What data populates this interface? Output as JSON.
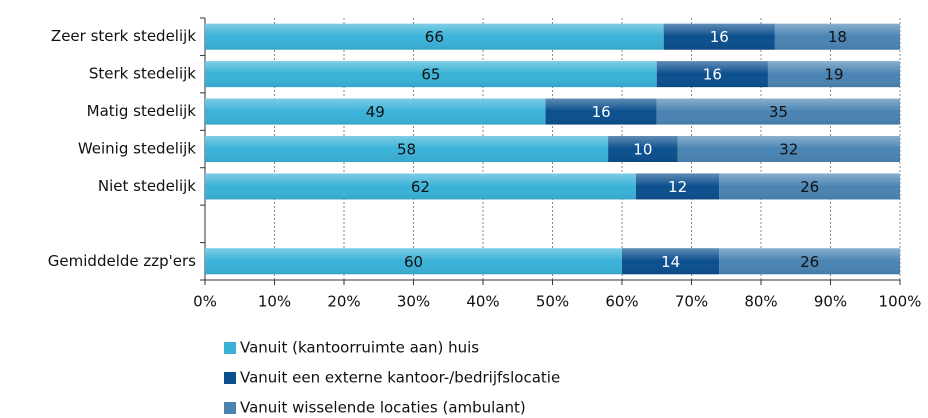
{
  "chart_data": {
    "type": "stacked-bar-horizontal",
    "categories": [
      "Zeer sterk stedelijk",
      "Sterk stedelijk",
      "Matig stedelijk",
      "Weinig stedelijk",
      "Niet stedelijk",
      null,
      "Gemiddelde zzp'ers"
    ],
    "series": [
      {
        "name": "Vanuit (kantoorruimte aan) huis",
        "color": "#3ab2d8",
        "label_color": "#111111",
        "values": [
          66,
          65,
          49,
          58,
          62,
          null,
          60
        ]
      },
      {
        "name": "Vanuit een externe kantoor-/bedrijfslocatie",
        "color": "#0b4f8e",
        "label_color": "#ffffff",
        "values": [
          16,
          16,
          16,
          10,
          12,
          null,
          14
        ]
      },
      {
        "name": "Vanuit wisselende locaties (ambulant)",
        "color": "#4a84b3",
        "label_color": "#111111",
        "values": [
          18,
          19,
          35,
          32,
          26,
          null,
          26
        ]
      }
    ],
    "xlim": [
      0,
      100
    ],
    "xticks": [
      {
        "value": 0,
        "label": "0%"
      },
      {
        "value": 10,
        "label": "10%"
      },
      {
        "value": 20,
        "label": "20%"
      },
      {
        "value": 30,
        "label": "30%"
      },
      {
        "value": 40,
        "label": "40%"
      },
      {
        "value": 50,
        "label": "50%"
      },
      {
        "value": 60,
        "label": "60%"
      },
      {
        "value": 70,
        "label": "70%"
      },
      {
        "value": 80,
        "label": "80%"
      },
      {
        "value": 90,
        "label": "90%"
      },
      {
        "value": 100,
        "label": "100%"
      }
    ],
    "grid": true,
    "legend": "bottom"
  }
}
